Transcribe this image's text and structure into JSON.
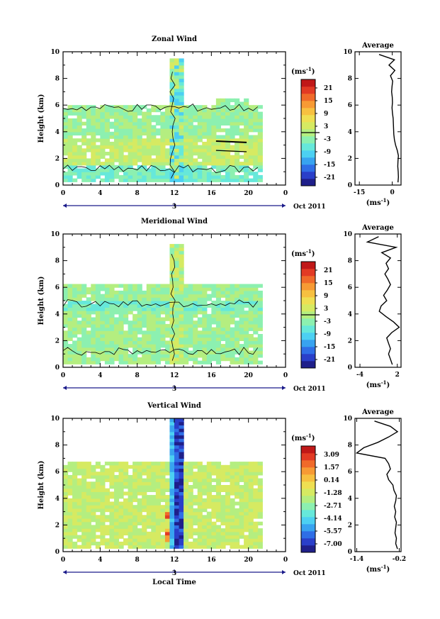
{
  "chart_data": [
    {
      "type": "heatmap",
      "title": "Zonal Wind",
      "ylabel": "Height (km)",
      "yticks": [
        "0",
        "2",
        "4",
        "6",
        "8",
        "10"
      ],
      "xticks": [
        "0",
        "4",
        "8",
        "12",
        "16",
        "20",
        "0"
      ],
      "ylim": [
        0,
        10
      ],
      "xlim": [
        0,
        24
      ],
      "date_day": "3",
      "date_label": "Oct 2011",
      "colorbar": {
        "unit": "(ms",
        "unit_sup": "-1",
        "unit_close": ")",
        "ticks": [
          "21",
          "15",
          "9",
          "3",
          "-3",
          "-9",
          "-15",
          "-21"
        ],
        "range": [
          -24,
          24
        ],
        "colors": [
          "#1f1f8a",
          "#2a3fc9",
          "#2f6ee6",
          "#38a3f0",
          "#4cd0f2",
          "#66e8da",
          "#8cf0b0",
          "#b4ee80",
          "#d6ea62",
          "#efdf52",
          "#f7c040",
          "#f79a34",
          "#f06a2a",
          "#e23a24",
          "#c01818"
        ],
        "zero_line": true
      },
      "avg": {
        "title": "Average",
        "xticks": [
          "-15",
          "0"
        ],
        "xlim": [
          -17,
          4
        ],
        "xunit": "(ms",
        "xunit_sup": "-1",
        "xunit_close": ")",
        "heights": [
          0.2,
          0.6,
          1.0,
          1.4,
          1.8,
          2.2,
          2.6,
          3.0,
          3.4,
          3.8,
          4.2,
          4.6,
          5.0,
          5.4,
          5.8,
          6.2,
          6.6,
          7.0,
          7.4,
          7.8,
          8.2,
          8.6,
          9.0,
          9.4,
          9.8
        ],
        "values": [
          2.6,
          2.8,
          2.7,
          2.5,
          2.6,
          2.8,
          2.3,
          1.5,
          1.0,
          0.7,
          0.6,
          0.5,
          0.4,
          0.1,
          -0.1,
          0.1,
          0.0,
          -0.3,
          -0.1,
          0.2,
          -0.8,
          1.2,
          -1.5,
          1.0,
          -6.0
        ]
      }
    },
    {
      "type": "heatmap",
      "title": "Meridional Wind",
      "ylabel": "Height (km)",
      "yticks": [
        "0",
        "2",
        "4",
        "6",
        "8",
        "10"
      ],
      "xticks": [
        "0",
        "4",
        "8",
        "12",
        "16",
        "20",
        "0"
      ],
      "ylim": [
        0,
        10
      ],
      "xlim": [
        0,
        24
      ],
      "date_day": "3",
      "date_label": "Oct 2011",
      "colorbar": {
        "unit": "(ms",
        "unit_sup": "-1",
        "unit_close": ")",
        "ticks": [
          "21",
          "15",
          "9",
          "3",
          "-3",
          "-9",
          "-15",
          "-21"
        ],
        "range": [
          -24,
          24
        ],
        "colors": [
          "#1f1f8a",
          "#2a3fc9",
          "#2f6ee6",
          "#38a3f0",
          "#4cd0f2",
          "#66e8da",
          "#8cf0b0",
          "#b4ee80",
          "#d6ea62",
          "#efdf52",
          "#f7c040",
          "#f79a34",
          "#f06a2a",
          "#e23a24",
          "#c01818"
        ],
        "zero_line": true
      },
      "avg": {
        "title": "Average",
        "xticks": [
          "-4",
          "2"
        ],
        "xlim": [
          -4.8,
          2.6
        ],
        "xunit": "(ms",
        "xunit_sup": "-1",
        "xunit_close": ")",
        "heights": [
          0.2,
          0.6,
          1.0,
          1.4,
          1.8,
          2.2,
          2.6,
          3.0,
          3.4,
          3.8,
          4.2,
          4.6,
          5.0,
          5.4,
          5.8,
          6.2,
          6.6,
          7.0,
          7.4,
          7.8,
          8.2,
          8.6,
          9.0,
          9.4,
          9.8
        ],
        "values": [
          1.2,
          0.9,
          0.6,
          0.9,
          0.6,
          0.3,
          1.1,
          2.3,
          1.4,
          0.2,
          -0.9,
          -0.6,
          0.3,
          -0.2,
          0.4,
          0.9,
          0.5,
          0.0,
          0.6,
          0.2,
          0.9,
          -0.5,
          1.8,
          -2.8,
          -1.0
        ]
      }
    },
    {
      "type": "heatmap",
      "title": "Vertical Wind",
      "ylabel": "Height (km)",
      "xlabel": "Local Time",
      "yticks": [
        "0",
        "2",
        "4",
        "6",
        "8",
        "10"
      ],
      "xticks": [
        "0",
        "4",
        "8",
        "12",
        "16",
        "20",
        "0"
      ],
      "ylim": [
        0,
        10
      ],
      "xlim": [
        0,
        24
      ],
      "date_day": "3",
      "date_label": "Oct 2011",
      "colorbar": {
        "unit": "(ms",
        "unit_sup": "-1",
        "unit_close": ")",
        "ticks": [
          "3.09",
          "1.57",
          "0.14",
          "-1.28",
          "-2.71",
          "-4.14",
          "-5.57",
          "-7.00"
        ],
        "range": [
          -7.7,
          3.8
        ],
        "colors": [
          "#1f1f8a",
          "#2a3fc9",
          "#2f6ee6",
          "#38a3f0",
          "#4cd0f2",
          "#66e8da",
          "#8cf0b0",
          "#b4ee80",
          "#d6ea62",
          "#efdf52",
          "#f7c040",
          "#f79a34",
          "#f06a2a",
          "#e23a24",
          "#c01818"
        ],
        "zero_line": false
      },
      "avg": {
        "title": "Average",
        "xticks": [
          "-1.4",
          "-0.2"
        ],
        "xlim": [
          -1.45,
          -0.15
        ],
        "xunit": "(ms",
        "xunit_sup": "-1",
        "xunit_close": ")",
        "heights": [
          0.2,
          0.6,
          1.0,
          1.4,
          1.8,
          2.2,
          2.6,
          3.0,
          3.4,
          3.8,
          4.2,
          4.6,
          5.0,
          5.4,
          5.8,
          6.2,
          6.6,
          7.0,
          7.4,
          7.8,
          8.2,
          8.6,
          9.0,
          9.4,
          9.8
        ],
        "values": [
          -0.25,
          -0.3,
          -0.28,
          -0.32,
          -0.3,
          -0.28,
          -0.33,
          -0.3,
          -0.34,
          -0.3,
          -0.28,
          -0.35,
          -0.38,
          -0.5,
          -0.55,
          -0.45,
          -0.5,
          -0.6,
          -1.4,
          -1.2,
          -0.8,
          -0.5,
          -0.25,
          -0.45,
          -0.9
        ]
      }
    }
  ]
}
